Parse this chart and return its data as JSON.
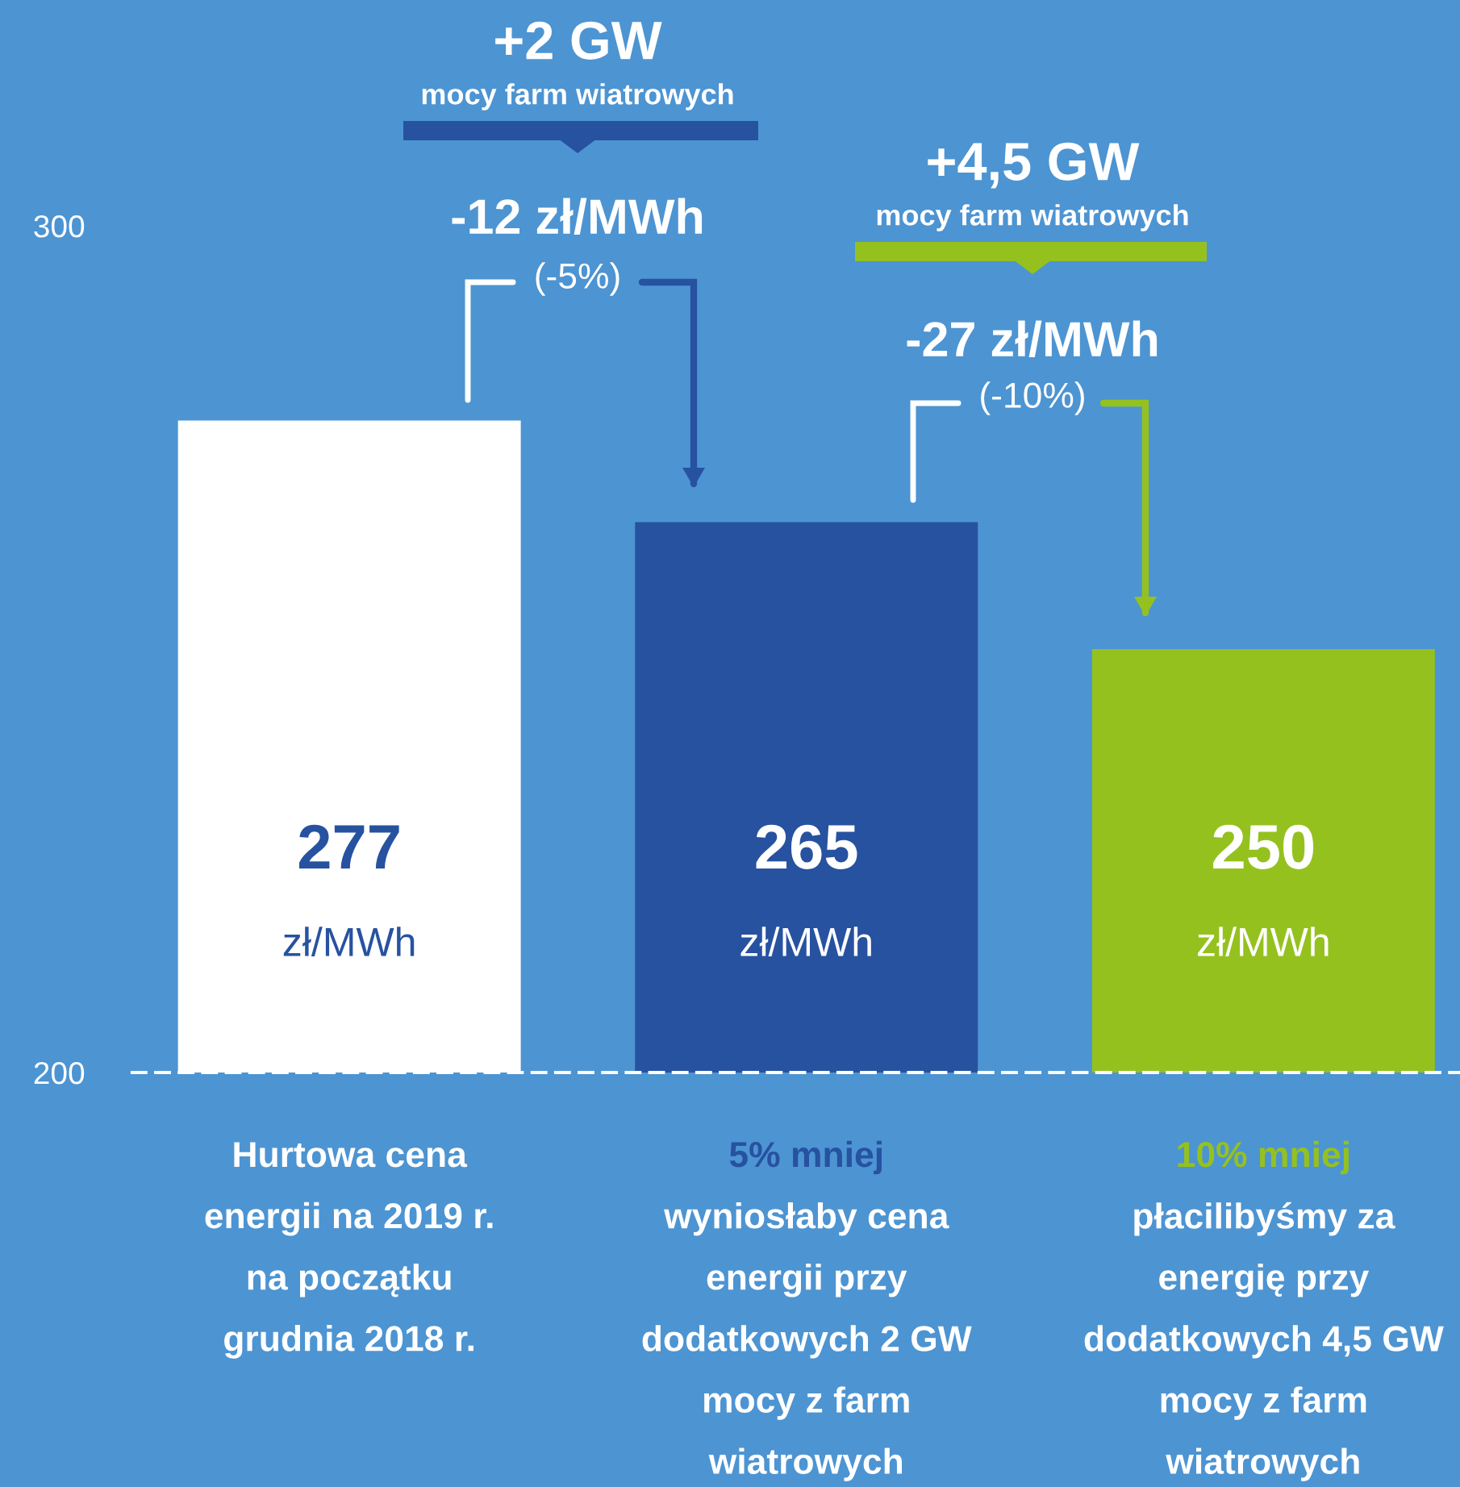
{
  "chart_data": {
    "type": "bar",
    "categories": [
      "Hurtowa cena\nenergii na 2019 r.\nna początku\ngrudnia 2018 r.",
      "5% mniej\nwyniosłaby cena\nenergii przy\ndodatkowych 2 GW\nmocy z farm\nwiatrowych",
      "10% mniej\npłacilibyśmy za\nenergię przy\ndodatkowych 4,5 GW\nmocy z farm\nwiatrowych"
    ],
    "values": [
      277,
      265,
      250
    ],
    "colors": [
      "#ffffff",
      "#2752a0",
      "#95c11f"
    ],
    "value_labels": [
      "277\nzł/MWh",
      "265\nzł/MWh",
      "250\nzł/MWh"
    ],
    "ylim": [
      200,
      300
    ],
    "yticks": [
      200,
      300
    ],
    "grid": false,
    "annotations": [
      "+2 GW",
      "mocy farm wiatrowych",
      "-12 zł/MWh",
      "(-5%)",
      "+4,5 GW",
      "mocy farm wiatrowych",
      "-27 zł/MWh",
      "(-10%)"
    ]
  }
}
